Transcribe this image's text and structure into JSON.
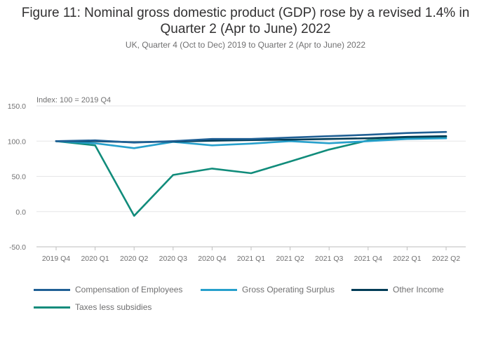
{
  "title": "Figure 11: Nominal gross domestic product (GDP) rose by a revised 1.4% in Quarter 2 (Apr to June) 2022",
  "subtitle": "UK, Quarter 4 (Oct to Dec) 2019 to Quarter 2 (Apr to June) 2022",
  "chart_data": {
    "type": "line",
    "title": "Figure 11: Nominal gross domestic product (GDP) rose by a revised 1.4% in Quarter 2 (Apr to June) 2022",
    "subtitle": "UK, Quarter 4 (Oct to Dec) 2019 to Quarter 2 (Apr to June) 2022",
    "ylabel": "Index: 100 = 2019 Q4",
    "xlabel": "",
    "ylim": [
      -50,
      150
    ],
    "yticks": [
      -50,
      0,
      50,
      100,
      150
    ],
    "ytick_labels": [
      "-50.0",
      "0.0",
      "50.0",
      "100.0",
      "150.0"
    ],
    "grid": true,
    "legend_position": "bottom-left",
    "categories": [
      "2019 Q4",
      "2020 Q1",
      "2020 Q2",
      "2020 Q3",
      "2020 Q4",
      "2021 Q1",
      "2021 Q2",
      "2021 Q3",
      "2021 Q4",
      "2022 Q1",
      "2022 Q2"
    ],
    "series": [
      {
        "name": "Compensation of Employees",
        "color": "#206095",
        "values": [
          100,
          101,
          98,
          100,
          103,
          103,
          105,
          107,
          109,
          111.5,
          113
        ]
      },
      {
        "name": "Gross Operating Surplus",
        "color": "#27a0cc",
        "values": [
          100,
          97,
          90,
          99,
          94,
          96.5,
          100,
          97,
          100,
          103,
          104
        ]
      },
      {
        "name": "Other Income",
        "color": "#003c57",
        "values": [
          100,
          100,
          98.5,
          99.5,
          100.5,
          101.5,
          102,
          103,
          104,
          106,
          107
        ]
      },
      {
        "name": "Taxes less subsidies",
        "color": "#118c7b",
        "values": [
          100,
          94,
          -6,
          52,
          61,
          54.5,
          71,
          88,
          101,
          104,
          106
        ]
      }
    ]
  }
}
